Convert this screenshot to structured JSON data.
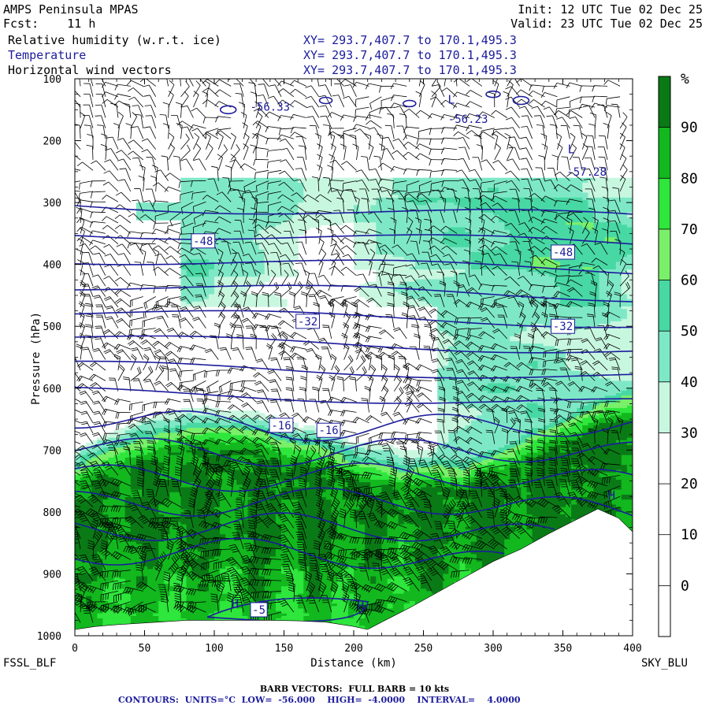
{
  "header": {
    "model": "AMPS Peninsula MPAS",
    "fcst_label": "Fcst:",
    "fcst_value": "11 h",
    "init": "Init: 12 UTC Tue 02 Dec 25",
    "valid": "Valid: 23 UTC Tue 02 Dec 25",
    "fields": [
      {
        "name": "Relative humidity (w.r.t. ice)",
        "xy": "XY= 293.7,407.7 to 170.1,495.3",
        "color": "#000000"
      },
      {
        "name": "Temperature",
        "xy": "XY= 293.7,407.7 to 170.1,495.3",
        "color": "#1c1c9c"
      },
      {
        "name": "Horizontal wind vectors",
        "xy": "XY= 293.7,407.7 to 170.1,495.3",
        "color": "#000000"
      }
    ]
  },
  "chart_data": {
    "type": "heatmap",
    "xlabel": "Distance (km)",
    "ylabel": "Pressure (hPa)",
    "xlim": [
      0,
      400
    ],
    "ylim": [
      1000,
      100
    ],
    "x_ticks": [
      0,
      50,
      100,
      150,
      200,
      250,
      300,
      350,
      400
    ],
    "y_ticks": [
      100,
      200,
      300,
      400,
      500,
      600,
      700,
      800,
      900,
      1000
    ],
    "left_endpoint": "FSSL_BLF",
    "right_endpoint": "SKY_BLU",
    "colorbar": {
      "unit": "%",
      "levels": [
        0,
        10,
        20,
        30,
        40,
        50,
        60,
        70,
        80,
        90
      ],
      "colors": [
        "#ffffff",
        "#ffffff",
        "#ffffff",
        "#ffffff",
        "#c8f7e0",
        "#7ee8c6",
        "#48d8a4",
        "#7af06a",
        "#2ee63c",
        "#12b81e",
        "#0a7a16"
      ]
    },
    "temperature_contours": {
      "units": "°C",
      "low": -56.0,
      "high": -4.0,
      "interval": 4.0,
      "color": "#1c1c9c",
      "labels": [
        {
          "text": "-56.33",
          "x": 140,
          "p": 145
        },
        {
          "text": "-56.23",
          "x": 282,
          "p": 165
        },
        {
          "text": "-57.28",
          "x": 367,
          "p": 250
        },
        {
          "text": "-48",
          "x": 92,
          "p": 362
        },
        {
          "text": "-48",
          "x": 350,
          "p": 380
        },
        {
          "text": "-32",
          "x": 167,
          "p": 492
        },
        {
          "text": "-32",
          "x": 350,
          "p": 500
        },
        {
          "text": "-16",
          "x": 148,
          "p": 660
        },
        {
          "text": "-16",
          "x": 182,
          "p": 668
        },
        {
          "text": "-5",
          "x": 132,
          "p": 958
        }
      ],
      "markers": [
        {
          "text": "L",
          "x": 356,
          "p": 220
        },
        {
          "text": "L",
          "x": 270,
          "p": 140
        },
        {
          "text": "H",
          "x": 115,
          "p": 955
        },
        {
          "text": "H",
          "x": 205,
          "p": 958
        },
        {
          "text": "H",
          "x": 385,
          "p": 780
        }
      ]
    },
    "surface_profile": [
      [
        0,
        990
      ],
      [
        15,
        985
      ],
      [
        30,
        982
      ],
      [
        45,
        980
      ],
      [
        60,
        978
      ],
      [
        80,
        975
      ],
      [
        100,
        975
      ],
      [
        120,
        975
      ],
      [
        140,
        975
      ],
      [
        160,
        976
      ],
      [
        180,
        978
      ],
      [
        200,
        985
      ],
      [
        210,
        990
      ],
      [
        220,
        978
      ],
      [
        240,
        955
      ],
      [
        260,
        930
      ],
      [
        280,
        905
      ],
      [
        300,
        880
      ],
      [
        320,
        860
      ],
      [
        340,
        835
      ],
      [
        360,
        812
      ],
      [
        375,
        795
      ],
      [
        390,
        810
      ],
      [
        400,
        832
      ]
    ]
  },
  "footer": {
    "barb_note": "BARB VECTORS:  FULL BARB = 10 kts",
    "contour_label": "CONTOURS:",
    "units": "UNITS=°C",
    "low": "LOW=  -56.000",
    "high": "HIGH=  -4.0000",
    "interval": "INTERVAL=    4.0000"
  }
}
